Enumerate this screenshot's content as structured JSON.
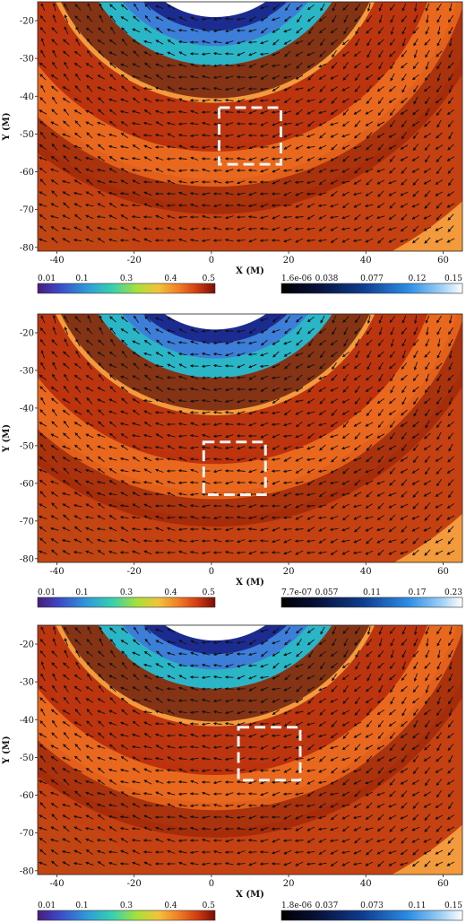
{
  "chart_data": [
    {
      "type": "heatmap",
      "xlabel": "X (M)",
      "ylabel": "Y (M)",
      "xlim": [
        -45,
        65
      ],
      "ylim": [
        -81,
        -15
      ],
      "xticks": [
        -40,
        -20,
        0,
        20,
        40,
        60
      ],
      "yticks": [
        -20,
        -30,
        -40,
        -50,
        -60,
        -70,
        -80
      ],
      "highlight_box": {
        "x": [
          2,
          18
        ],
        "y": [
          -58,
          -43
        ]
      },
      "arc_center": [
        1,
        5
      ],
      "colorbar_left": {
        "colormap": "jet",
        "ticks": [
          "0.01",
          "0.1",
          "0.3",
          "0.4",
          "0.5"
        ]
      },
      "colorbar_right": {
        "colormap": "blues",
        "ticks": [
          "1.6e-06",
          "0.038",
          "0.077",
          "0.12",
          "0.15"
        ]
      }
    },
    {
      "type": "heatmap",
      "xlabel": "X (M)",
      "ylabel": "Y (M)",
      "xlim": [
        -45,
        65
      ],
      "ylim": [
        -81,
        -15
      ],
      "xticks": [
        -40,
        -20,
        0,
        20,
        40,
        60
      ],
      "yticks": [
        -20,
        -30,
        -40,
        -50,
        -60,
        -70,
        -80
      ],
      "highlight_box": {
        "x": [
          -2,
          14
        ],
        "y": [
          -63,
          -49
        ]
      },
      "arc_center": [
        1,
        5
      ],
      "colorbar_left": {
        "colormap": "jet",
        "ticks": [
          "0.01",
          "0.1",
          "0.3",
          "0.4",
          "0.5"
        ]
      },
      "colorbar_right": {
        "colormap": "blues",
        "ticks": [
          "7.7e-07",
          "0.057",
          "0.11",
          "0.17",
          "0.23"
        ]
      }
    },
    {
      "type": "heatmap",
      "xlabel": "X (M)",
      "ylabel": "Y (M)",
      "xlim": [
        -45,
        65
      ],
      "ylim": [
        -81,
        -15
      ],
      "xticks": [
        -40,
        -20,
        0,
        20,
        40,
        60
      ],
      "yticks": [
        -20,
        -30,
        -40,
        -50,
        -60,
        -70,
        -80
      ],
      "highlight_box": {
        "x": [
          7,
          23
        ],
        "y": [
          -56,
          -42
        ]
      },
      "arc_center": [
        1,
        5
      ],
      "colorbar_left": {
        "colormap": "jet",
        "ticks": [
          "0.01",
          "0.1",
          "0.3",
          "0.4",
          "0.5"
        ]
      },
      "colorbar_right": {
        "colormap": "blues",
        "ticks": [
          "1.8e-06",
          "0.037",
          "0.073",
          "0.11",
          "0.15"
        ]
      }
    }
  ]
}
